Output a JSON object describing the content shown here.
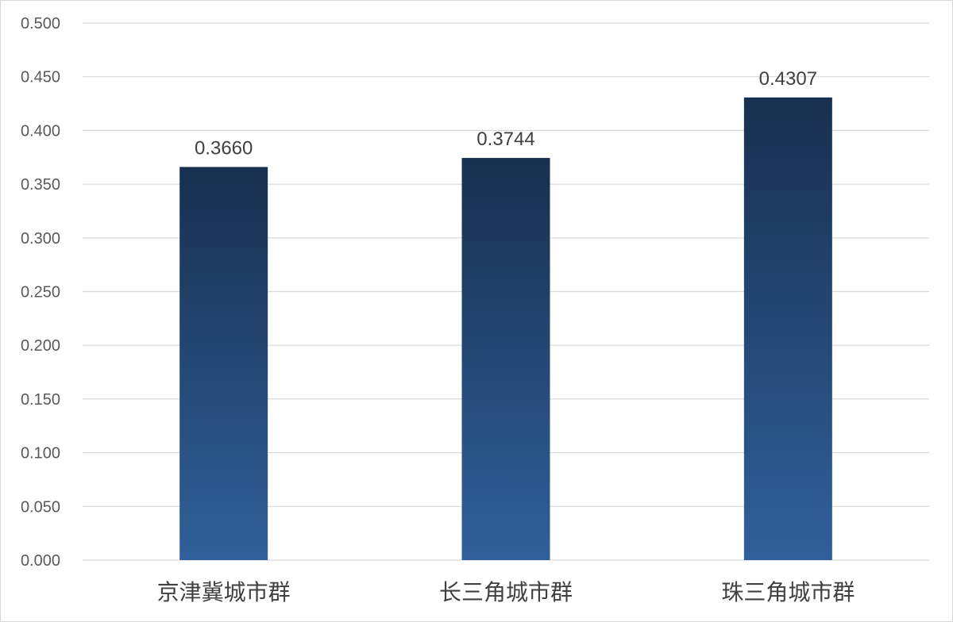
{
  "chart_data": {
    "type": "bar",
    "categories": [
      "京津冀城市群",
      "长三角城市群",
      "珠三角城市群"
    ],
    "values": [
      0.366,
      0.3744,
      0.4307
    ],
    "data_labels": [
      "0.3660",
      "0.3744",
      "0.4307"
    ],
    "yticks": [
      "0.000",
      "0.050",
      "0.100",
      "0.150",
      "0.200",
      "0.250",
      "0.300",
      "0.350",
      "0.400",
      "0.450",
      "0.500"
    ],
    "ylim": [
      0,
      0.5
    ],
    "grid": true,
    "legend": "none",
    "colors": {
      "bar_top": "#18304F",
      "bar_bottom": "#30609A",
      "grid": "#D9D9D9",
      "tick_text": "#595959",
      "label_text": "#404040"
    }
  }
}
